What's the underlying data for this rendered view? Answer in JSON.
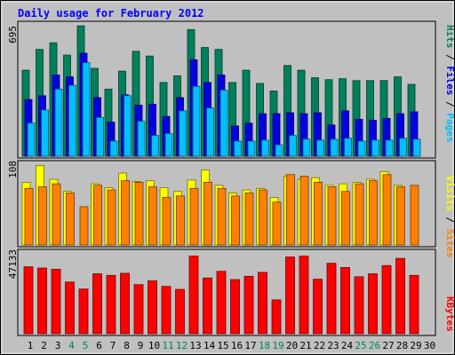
{
  "chart_data": {
    "type": "bar",
    "title": "Daily usage for February 2012",
    "days": [
      "1",
      "2",
      "3",
      "4",
      "5",
      "6",
      "7",
      "8",
      "9",
      "10",
      "11",
      "12",
      "13",
      "14",
      "15",
      "16",
      "17",
      "18",
      "19",
      "20",
      "21",
      "22",
      "23",
      "24",
      "25",
      "26",
      "27",
      "28",
      "29",
      "30"
    ],
    "weekend_days": [
      "4",
      "5",
      "11",
      "12",
      "18",
      "19",
      "25",
      "26"
    ],
    "top_panel": {
      "ymax_label": "695",
      "ymax": 695,
      "series": [
        {
          "name": "Hits",
          "color": "#00805c",
          "values": [
            455,
            565,
            600,
            535,
            690,
            465,
            355,
            450,
            555,
            530,
            390,
            425,
            670,
            575,
            565,
            390,
            455,
            385,
            345,
            480,
            455,
            415,
            405,
            410,
            400,
            400,
            400,
            420,
            380,
            0
          ]
        },
        {
          "name": "Files",
          "color": "#0000e0",
          "values": [
            300,
            320,
            430,
            420,
            545,
            310,
            180,
            325,
            270,
            275,
            210,
            310,
            510,
            390,
            430,
            160,
            175,
            225,
            225,
            230,
            225,
            230,
            165,
            240,
            195,
            190,
            200,
            225,
            235,
            0
          ]
        },
        {
          "name": "Pages",
          "color": "#00c0ff",
          "values": [
            175,
            245,
            355,
            375,
            495,
            205,
            80,
            320,
            185,
            110,
            120,
            240,
            370,
            255,
            350,
            80,
            80,
            85,
            60,
            110,
            90,
            85,
            90,
            95,
            80,
            85,
            85,
            95,
            90,
            0
          ]
        }
      ]
    },
    "middle_panel": {
      "ymax_label": "108",
      "ymax": 108,
      "series": [
        {
          "name": "Visits",
          "color": "#ffff00",
          "values": [
            82,
            104,
            86,
            70,
            0,
            80,
            75,
            94,
            83,
            84,
            75,
            70,
            85,
            98,
            78,
            68,
            72,
            74,
            62,
            90,
            86,
            88,
            78,
            80,
            82,
            86,
            96,
            78,
            0,
            0
          ]
        },
        {
          "name": "Sites",
          "color": "#ff8000",
          "values": [
            74,
            76,
            80,
            68,
            50,
            78,
            72,
            84,
            82,
            76,
            62,
            64,
            74,
            82,
            74,
            64,
            68,
            72,
            56,
            92,
            90,
            82,
            76,
            70,
            80,
            84,
            92,
            76,
            78,
            0
          ]
        }
      ]
    },
    "bottom_panel": {
      "ymax_label": "47133",
      "ymax": 47133,
      "series": [
        {
          "name": "KBytes",
          "color": "#ff0000",
          "values": [
            38200,
            37500,
            36800,
            29500,
            25500,
            34200,
            33300,
            34500,
            28000,
            30200,
            27000,
            25300,
            44300,
            31800,
            35600,
            30900,
            32800,
            35000,
            19300,
            43800,
            44300,
            31100,
            40200,
            37800,
            32500,
            34200,
            38900,
            43000,
            33300,
            0
          ]
        }
      ]
    },
    "right_labels": {
      "top": [
        "Pages",
        "Files",
        "Hits"
      ],
      "middle": [
        "Sites",
        "Visits"
      ],
      "bottom": [
        "KBytes"
      ]
    }
  }
}
